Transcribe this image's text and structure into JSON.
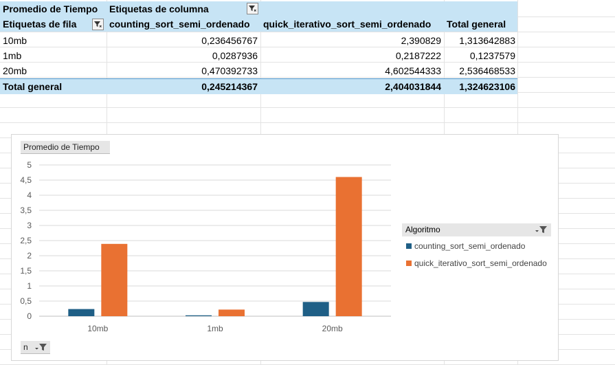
{
  "pivot": {
    "value_field": "Promedio de Tiempo",
    "column_labels": "Etiquetas de columna",
    "row_labels": "Etiquetas de fila",
    "columns": [
      "counting_sort_semi_ordenado",
      "quick_iterativo_sort_semi_ordenado",
      "Total general"
    ],
    "rows": [
      {
        "label": "10mb",
        "values": [
          "0,236456767",
          "2,390829",
          "1,313642883"
        ]
      },
      {
        "label": "1mb",
        "values": [
          "0,0287936",
          "0,2187222",
          "0,1237579"
        ]
      },
      {
        "label": "20mb",
        "values": [
          "0,470392733",
          "4,602544333",
          "2,536468533"
        ]
      }
    ],
    "total": {
      "label": "Total general",
      "values": [
        "0,245214367",
        "2,404031844",
        "1,324623106"
      ]
    }
  },
  "chart": {
    "value_chip": "Promedio de Tiempo",
    "axis_chip": "n",
    "legend_title": "Algoritmo",
    "colors": {
      "counting": "#1f5f86",
      "quick": "#e97132"
    }
  },
  "chart_data": {
    "type": "bar",
    "categories": [
      "10mb",
      "1mb",
      "20mb"
    ],
    "series": [
      {
        "name": "counting_sort_semi_ordenado",
        "values": [
          0.236456767,
          0.0287936,
          0.470392733
        ]
      },
      {
        "name": "quick_iterativo_sort_semi_ordenado",
        "values": [
          2.390829,
          0.2187222,
          4.602544333
        ]
      }
    ],
    "yticks": [
      "0",
      "0,5",
      "1",
      "1,5",
      "2",
      "2,5",
      "3",
      "3,5",
      "4",
      "4,5",
      "5"
    ],
    "ylim": [
      0,
      5
    ],
    "grid": true,
    "legend": "right"
  }
}
